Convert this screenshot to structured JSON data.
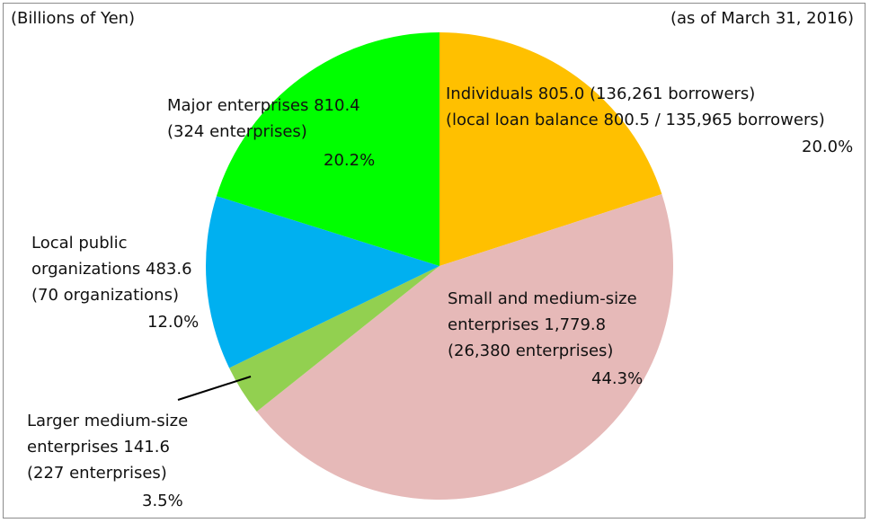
{
  "chart_data": {
    "type": "pie",
    "unit_label": "(Billions of Yen)",
    "date_label": "(as of March 31, 2016)",
    "slices": [
      {
        "label": "Individuals",
        "value": 805.0,
        "percent": 20.0,
        "color": "#ffc000",
        "lines": [
          "Individuals 805.0 (136,261 borrowers)",
          "(local loan balance 800.5 / 135,965 borrowers)"
        ],
        "pct_text": "20.0%"
      },
      {
        "label": "Small and medium-size enterprises",
        "value": 1779.8,
        "percent": 44.3,
        "color": "#e6b9b8",
        "lines": [
          "Small and medium-size",
          "enterprises 1,779.8",
          "(26,380 enterprises)"
        ],
        "pct_text": "44.3%"
      },
      {
        "label": "Larger medium-size enterprises",
        "value": 141.6,
        "percent": 3.5,
        "color": "#92d050",
        "lines": [
          "Larger medium-size",
          "enterprises 141.6",
          "(227 enterprises)"
        ],
        "pct_text": "3.5%"
      },
      {
        "label": "Local public organizations",
        "value": 483.6,
        "percent": 12.0,
        "color": "#00b0f0",
        "lines": [
          "Local public",
          "organizations 483.6",
          "(70 organizations)"
        ],
        "pct_text": "12.0%"
      },
      {
        "label": "Major enterprises",
        "value": 810.4,
        "percent": 20.2,
        "color": "#00ff00",
        "lines": [
          "Major enterprises 810.4",
          "(324 enterprises)"
        ],
        "pct_text": "20.2%"
      }
    ]
  }
}
